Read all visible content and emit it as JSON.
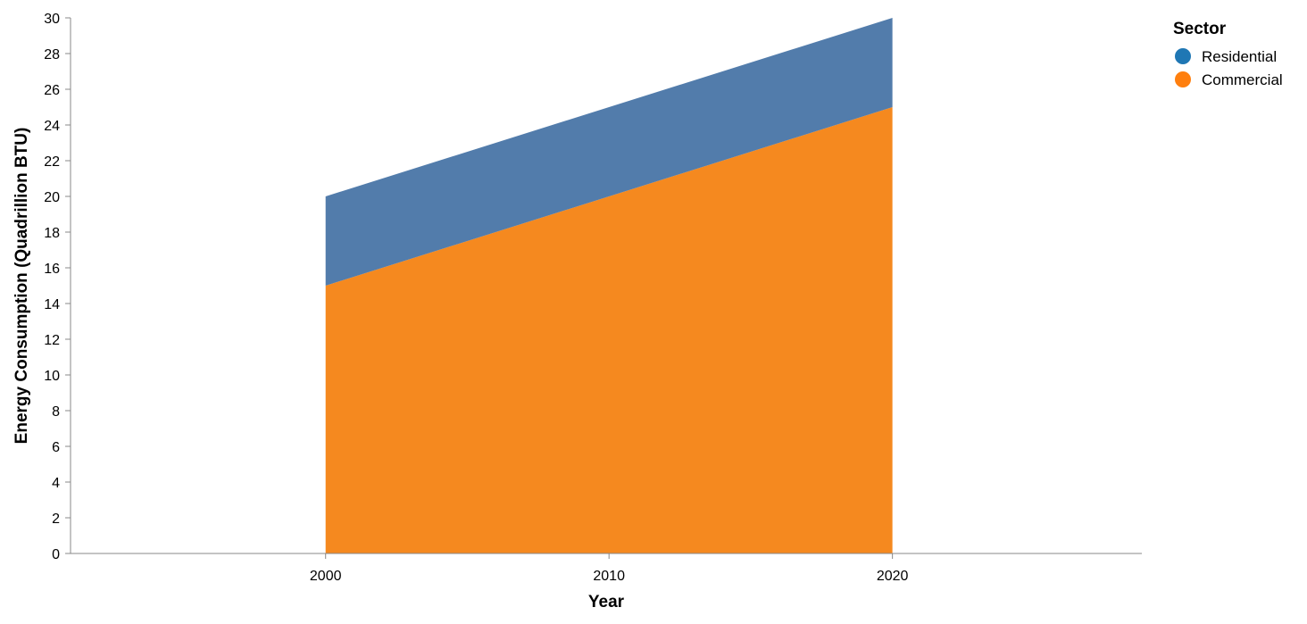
{
  "chart_data": {
    "type": "area",
    "stacked": true,
    "x": [
      2000,
      2010,
      2020
    ],
    "x_tick_labels": [
      "2000",
      "2010",
      "2020"
    ],
    "series": [
      {
        "name": "Commercial",
        "values": [
          15,
          20,
          25
        ],
        "color": "#f58518"
      },
      {
        "name": "Residential",
        "values": [
          5,
          5,
          5
        ],
        "color": "#4c78a8"
      }
    ],
    "xlabel": "Year",
    "ylabel": "Energy Consumption (Quadrillion BTU)",
    "xlim": [
      1991,
      2028.8
    ],
    "ylim": [
      0,
      30
    ],
    "y_ticks": [
      0,
      2,
      4,
      6,
      8,
      10,
      12,
      14,
      16,
      18,
      20,
      22,
      24,
      26,
      28,
      30
    ],
    "grid": false,
    "legend": {
      "title": "Sector",
      "placement": "top-right",
      "entries": [
        {
          "label": "Residential",
          "color": "#1f77b4"
        },
        {
          "label": "Commercial",
          "color": "#ff7f0e"
        }
      ]
    }
  }
}
